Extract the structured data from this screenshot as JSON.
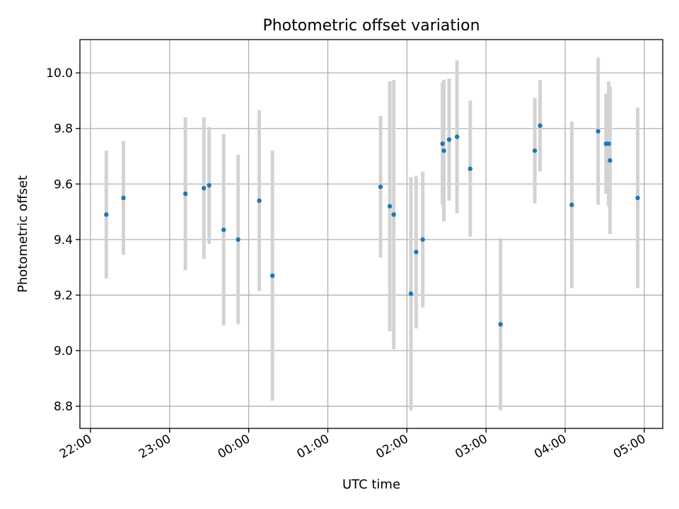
{
  "chart_data": {
    "type": "scatter",
    "title": "Photometric offset variation",
    "xlabel": "UTC time",
    "ylabel": "Photometric offset",
    "grid": true,
    "x_tick_labels": [
      "22:00",
      "23:00",
      "00:00",
      "01:00",
      "02:00",
      "03:00",
      "04:00",
      "05:00"
    ],
    "y_ticks": [
      8.8,
      9.0,
      9.2,
      9.4,
      9.6,
      9.8,
      10.0
    ],
    "y_tick_labels": [
      "8.8",
      "9.0",
      "9.2",
      "9.4",
      "9.6",
      "9.8",
      "10.0"
    ],
    "xlim": [
      "21:52",
      "05:14"
    ],
    "ylim": [
      8.72,
      10.12
    ],
    "colors": {
      "marker": "#1f77b4",
      "errorbar": "#d3d3d3"
    },
    "series": [
      {
        "points": [
          {
            "x": "22:12",
            "y": 9.49,
            "err": 0.23
          },
          {
            "x": "22:25",
            "y": 9.55,
            "err": 0.205
          },
          {
            "x": "23:12",
            "y": 9.565,
            "err": 0.275
          },
          {
            "x": "23:26",
            "y": 9.585,
            "err": 0.255
          },
          {
            "x": "23:30",
            "y": 9.595,
            "err": 0.21
          },
          {
            "x": "23:41",
            "y": 9.435,
            "err": 0.345
          },
          {
            "x": "23:52",
            "y": 9.4,
            "err": 0.305
          },
          {
            "x": "00:08",
            "y": 9.54,
            "err": 0.325
          },
          {
            "x": "00:18",
            "y": 9.27,
            "err": 0.45
          },
          {
            "x": "01:40",
            "y": 9.59,
            "err": 0.255
          },
          {
            "x": "01:47",
            "y": 9.52,
            "err": 0.45
          },
          {
            "x": "01:50",
            "y": 9.49,
            "err": 0.485
          },
          {
            "x": "02:03",
            "y": 9.205,
            "err": 0.42
          },
          {
            "x": "02:07",
            "y": 9.355,
            "err": 0.275
          },
          {
            "x": "02:12",
            "y": 9.4,
            "err": 0.245
          },
          {
            "x": "02:27",
            "y": 9.745,
            "err": 0.22
          },
          {
            "x": "02:28",
            "y": 9.72,
            "err": 0.255
          },
          {
            "x": "02:32",
            "y": 9.76,
            "err": 0.22
          },
          {
            "x": "02:38",
            "y": 9.77,
            "err": 0.275
          },
          {
            "x": "02:48",
            "y": 9.655,
            "err": 0.245
          },
          {
            "x": "03:11",
            "y": 9.095,
            "err": 0.31
          },
          {
            "x": "03:37",
            "y": 9.72,
            "err": 0.19
          },
          {
            "x": "03:41",
            "y": 9.81,
            "err": 0.165
          },
          {
            "x": "04:05",
            "y": 9.525,
            "err": 0.3
          },
          {
            "x": "04:25",
            "y": 9.79,
            "err": 0.265
          },
          {
            "x": "04:31",
            "y": 9.745,
            "err": 0.18
          },
          {
            "x": "04:33",
            "y": 9.745,
            "err": 0.225
          },
          {
            "x": "04:34",
            "y": 9.685,
            "err": 0.265
          },
          {
            "x": "04:55",
            "y": 9.55,
            "err": 0.325
          }
        ]
      }
    ]
  }
}
